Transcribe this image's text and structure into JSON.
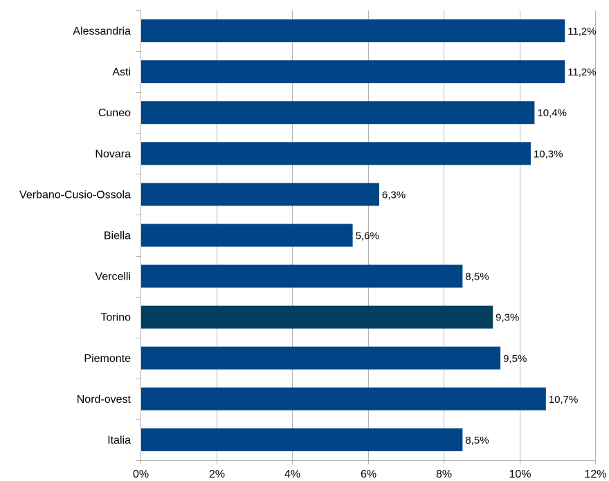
{
  "chart_data": {
    "type": "bar",
    "orientation": "horizontal",
    "categories": [
      "Alessandria",
      "Asti",
      "Cuneo",
      "Novara",
      "Verbano-Cusio-Ossola",
      "Biella",
      "Vercelli",
      "Torino",
      "Piemonte",
      "Nord-ovest",
      "Italia"
    ],
    "values": [
      11.2,
      11.2,
      10.4,
      10.3,
      6.3,
      5.6,
      8.5,
      9.3,
      9.5,
      10.7,
      8.5
    ],
    "data_labels": [
      "11,2%",
      "11,2%",
      "10,4%",
      "10,3%",
      "6,3%",
      "5,6%",
      "8,5%",
      "9,3%",
      "9,5%",
      "10,7%",
      "8,5%"
    ],
    "highlight_category": "Torino",
    "xlim": [
      0,
      12
    ],
    "x_ticks": [
      0,
      2,
      4,
      6,
      8,
      10,
      12
    ],
    "x_tick_labels": [
      "0%",
      "2%",
      "4%",
      "6%",
      "8%",
      "10%",
      "12%"
    ],
    "grid": true,
    "legend": "none",
    "title": "",
    "xlabel": "",
    "ylabel": "",
    "colors": {
      "bar": "#004586",
      "highlight": "#03405f",
      "grid": "#b3b3b3"
    }
  }
}
